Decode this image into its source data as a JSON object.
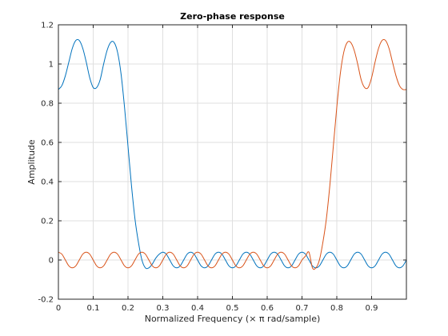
{
  "chart_data": {
    "type": "line",
    "title": "Zero-phase response",
    "xlabel": "Normalized Frequency (× π rad/sample)",
    "ylabel": "Amplitude",
    "xlim": [
      0,
      1
    ],
    "ylim": [
      -0.2,
      1.2
    ],
    "xticks": [
      0,
      0.1,
      0.2,
      0.3,
      0.4,
      0.5,
      0.6,
      0.7,
      0.8,
      0.9
    ],
    "xtick_labels": [
      "0",
      "0.1",
      "0.2",
      "0.3",
      "0.4",
      "0.5",
      "0.6",
      "0.7",
      "0.8",
      "0.9"
    ],
    "yticks": [
      -0.2,
      0,
      0.2,
      0.4,
      0.6,
      0.8,
      1,
      1.2
    ],
    "ytick_labels": [
      "-0.2",
      "0",
      "0.2",
      "0.4",
      "0.6",
      "0.8",
      "1",
      "1.2"
    ],
    "grid": true,
    "legend": "none",
    "series": [
      {
        "color": "#0072bd",
        "x": [
          0,
          0.01,
          0.02,
          0.03,
          0.04,
          0.05,
          0.06,
          0.07,
          0.08,
          0.09,
          0.1,
          0.11,
          0.12,
          0.13,
          0.14,
          0.15,
          0.16,
          0.17,
          0.18,
          0.19,
          0.2,
          0.21,
          0.22,
          0.23,
          0.24,
          0.25,
          0.26,
          0.27,
          0.28,
          0.29,
          0.3,
          0.31,
          0.32,
          0.33,
          0.34,
          0.35,
          0.36,
          0.37,
          0.38,
          0.39,
          0.4,
          0.41,
          0.42,
          0.43,
          0.44,
          0.45,
          0.46,
          0.47,
          0.48,
          0.49,
          0.5,
          0.51,
          0.52,
          0.53,
          0.54,
          0.55,
          0.56,
          0.57,
          0.58,
          0.59,
          0.6,
          0.61,
          0.62,
          0.63,
          0.64,
          0.65,
          0.66,
          0.67,
          0.68,
          0.69,
          0.7,
          0.71,
          0.72,
          0.73,
          0.74,
          0.75,
          0.76,
          0.77,
          0.78,
          0.79,
          0.8,
          0.81,
          0.82,
          0.83,
          0.84,
          0.85,
          0.86,
          0.87,
          0.88,
          0.89,
          0.9,
          0.91,
          0.92,
          0.93,
          0.94,
          0.95,
          0.96,
          0.97,
          0.98,
          0.99,
          1
        ],
        "y": [
          0.87,
          0.89,
          0.94,
          1.01,
          1.08,
          1.12,
          1.12,
          1.08,
          1.01,
          0.93,
          0.88,
          0.88,
          0.92,
          1.0,
          1.07,
          1.11,
          1.11,
          1.06,
          0.95,
          0.78,
          0.58,
          0.38,
          0.21,
          0.09,
          0.0,
          -0.04,
          -0.04,
          -0.02,
          0.01,
          0.03,
          0.04,
          0.03,
          0.0,
          -0.03,
          -0.04,
          -0.03,
          0.0,
          0.03,
          0.04,
          0.03,
          0.0,
          -0.03,
          -0.04,
          -0.03,
          0.0,
          0.03,
          0.04,
          0.03,
          0.0,
          -0.03,
          -0.04,
          -0.03,
          0.0,
          0.03,
          0.04,
          0.03,
          0.0,
          -0.03,
          -0.04,
          -0.03,
          0.0,
          0.03,
          0.04,
          0.03,
          0.0,
          -0.03,
          -0.04,
          -0.03,
          0.0,
          0.03,
          0.04,
          0.03,
          0.0,
          -0.03,
          -0.04,
          -0.03,
          0.0,
          0.03,
          0.04,
          0.03,
          0.0,
          -0.03,
          -0.04,
          -0.03,
          0.0,
          0.03,
          0.04,
          0.03,
          0.0,
          -0.03,
          -0.04,
          -0.03,
          0.0,
          0.03,
          0.04,
          0.03,
          0.0,
          -0.03,
          -0.04,
          -0.03,
          0.0
        ]
      },
      {
        "color": "#d95319",
        "x": [
          0,
          0.01,
          0.02,
          0.03,
          0.04,
          0.05,
          0.06,
          0.07,
          0.08,
          0.09,
          0.1,
          0.11,
          0.12,
          0.13,
          0.14,
          0.15,
          0.16,
          0.17,
          0.18,
          0.19,
          0.2,
          0.21,
          0.22,
          0.23,
          0.24,
          0.25,
          0.26,
          0.27,
          0.28,
          0.29,
          0.3,
          0.31,
          0.32,
          0.33,
          0.34,
          0.35,
          0.36,
          0.37,
          0.38,
          0.39,
          0.4,
          0.41,
          0.42,
          0.43,
          0.44,
          0.45,
          0.46,
          0.47,
          0.48,
          0.49,
          0.5,
          0.51,
          0.52,
          0.53,
          0.54,
          0.55,
          0.56,
          0.57,
          0.58,
          0.59,
          0.6,
          0.61,
          0.62,
          0.63,
          0.64,
          0.65,
          0.66,
          0.67,
          0.68,
          0.69,
          0.7,
          0.71,
          0.72,
          0.73,
          0.74,
          0.75,
          0.76,
          0.77,
          0.78,
          0.79,
          0.8,
          0.81,
          0.82,
          0.83,
          0.84,
          0.85,
          0.86,
          0.87,
          0.88,
          0.89,
          0.9,
          0.91,
          0.92,
          0.93,
          0.94,
          0.95,
          0.96,
          0.97,
          0.98,
          0.99,
          1
        ],
        "y": [
          0.04,
          0.03,
          0.0,
          -0.03,
          -0.04,
          -0.03,
          0.0,
          0.03,
          0.04,
          0.03,
          0.0,
          -0.03,
          -0.04,
          -0.03,
          0.0,
          0.03,
          0.04,
          0.03,
          0.0,
          -0.03,
          -0.04,
          -0.03,
          0.0,
          0.03,
          0.04,
          0.03,
          0.0,
          -0.03,
          -0.04,
          -0.03,
          0.0,
          0.03,
          0.04,
          0.03,
          0.0,
          -0.03,
          -0.04,
          -0.03,
          0.0,
          0.03,
          0.04,
          0.03,
          0.0,
          -0.03,
          -0.04,
          -0.03,
          0.0,
          0.03,
          0.04,
          0.03,
          0.0,
          -0.03,
          -0.04,
          -0.03,
          0.0,
          0.03,
          0.04,
          0.03,
          0.0,
          -0.03,
          -0.04,
          -0.03,
          0.0,
          0.03,
          0.04,
          0.03,
          0.0,
          -0.03,
          -0.04,
          -0.03,
          0.0,
          0.02,
          0.04,
          -0.04,
          -0.04,
          0.0,
          0.09,
          0.21,
          0.38,
          0.58,
          0.78,
          0.95,
          1.06,
          1.11,
          1.11,
          1.07,
          1.0,
          0.92,
          0.88,
          0.88,
          0.93,
          1.01,
          1.08,
          1.12,
          1.12,
          1.08,
          1.01,
          0.94,
          0.89,
          0.87,
          0.87
        ]
      }
    ]
  }
}
